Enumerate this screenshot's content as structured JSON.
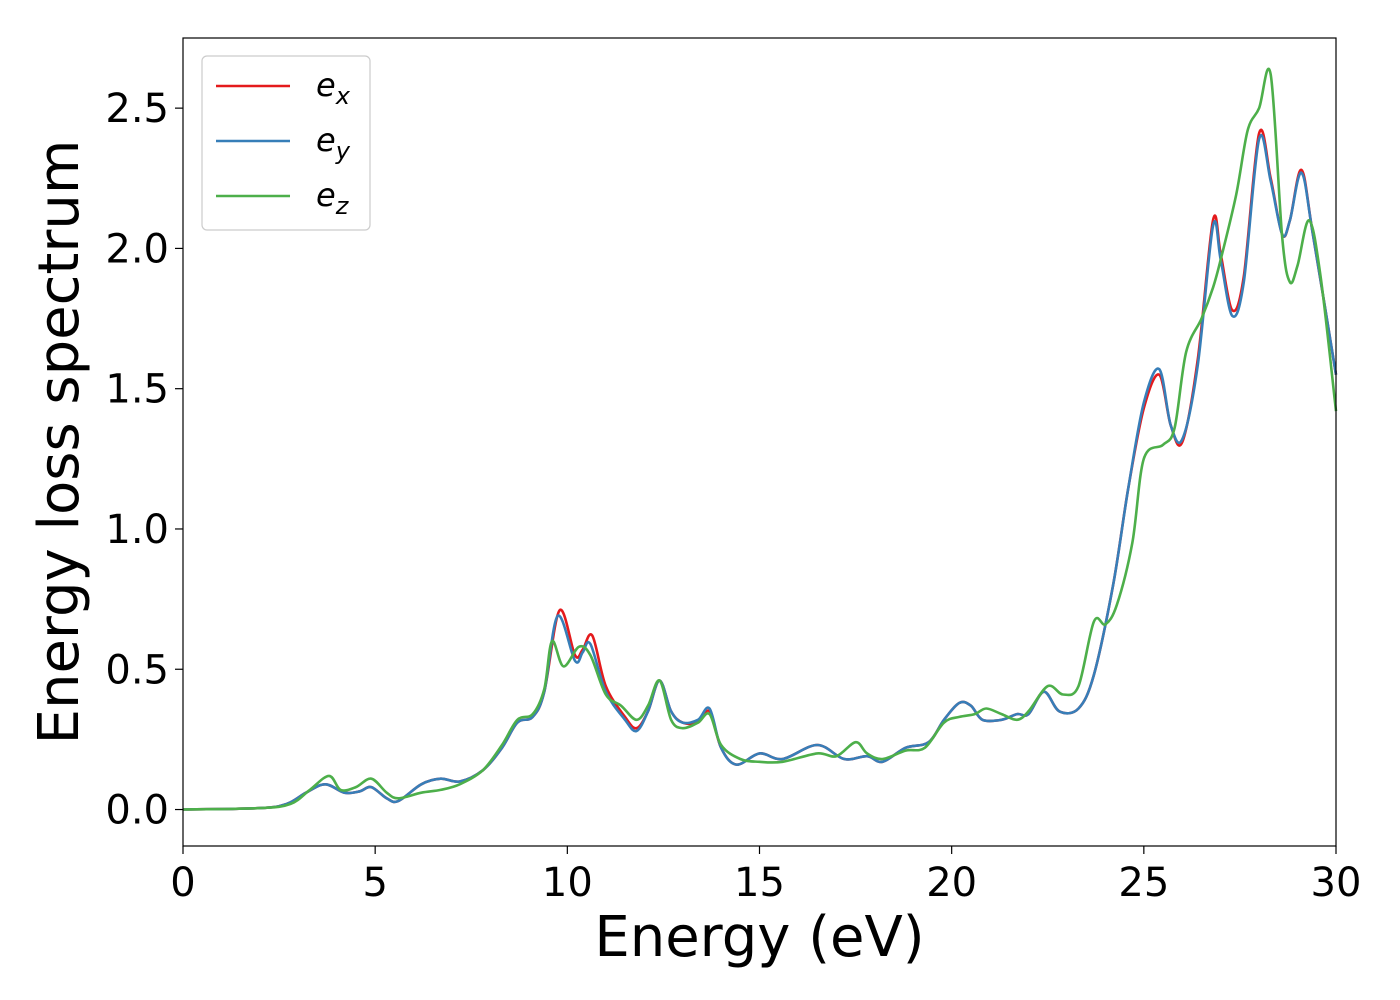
{
  "chart_data": {
    "type": "line",
    "xlabel": "Energy (eV)",
    "ylabel": "Energy loss spectrum",
    "xlim": [
      0,
      30
    ],
    "ylim": [
      -0.13,
      2.75
    ],
    "xticks": [
      "0",
      "5",
      "10",
      "15",
      "20",
      "25",
      "30"
    ],
    "yticks": [
      "0.0",
      "0.5",
      "1.0",
      "1.5",
      "2.0",
      "2.5"
    ],
    "grid": false,
    "legend_position": "top-left",
    "series": [
      {
        "name": "e_x",
        "label_base": "e",
        "label_sub": "x",
        "color": "#e41a1c",
        "points": [
          [
            0,
            0
          ],
          [
            2,
            0.005
          ],
          [
            2.7,
            0.02
          ],
          [
            3.2,
            0.06
          ],
          [
            3.7,
            0.09
          ],
          [
            4.2,
            0.06
          ],
          [
            4.6,
            0.065
          ],
          [
            4.9,
            0.08
          ],
          [
            5.3,
            0.04
          ],
          [
            5.6,
            0.03
          ],
          [
            6.2,
            0.09
          ],
          [
            6.7,
            0.11
          ],
          [
            7.2,
            0.1
          ],
          [
            7.8,
            0.14
          ],
          [
            8.3,
            0.22
          ],
          [
            8.7,
            0.31
          ],
          [
            9.1,
            0.33
          ],
          [
            9.4,
            0.42
          ],
          [
            9.8,
            0.71
          ],
          [
            10.2,
            0.55
          ],
          [
            10.4,
            0.57
          ],
          [
            10.65,
            0.62
          ],
          [
            11.0,
            0.44
          ],
          [
            11.5,
            0.33
          ],
          [
            11.8,
            0.29
          ],
          [
            12.1,
            0.35
          ],
          [
            12.4,
            0.46
          ],
          [
            12.7,
            0.35
          ],
          [
            13.0,
            0.31
          ],
          [
            13.4,
            0.31
          ],
          [
            13.7,
            0.35
          ],
          [
            14.0,
            0.22
          ],
          [
            14.4,
            0.16
          ],
          [
            15.0,
            0.2
          ],
          [
            15.6,
            0.18
          ],
          [
            16.5,
            0.23
          ],
          [
            17.2,
            0.18
          ],
          [
            17.8,
            0.19
          ],
          [
            18.2,
            0.17
          ],
          [
            18.8,
            0.22
          ],
          [
            19.4,
            0.24
          ],
          [
            19.8,
            0.32
          ],
          [
            20.2,
            0.38
          ],
          [
            20.5,
            0.37
          ],
          [
            20.8,
            0.32
          ],
          [
            21.3,
            0.32
          ],
          [
            21.7,
            0.34
          ],
          [
            22.0,
            0.34
          ],
          [
            22.4,
            0.42
          ],
          [
            22.8,
            0.35
          ],
          [
            23.3,
            0.36
          ],
          [
            23.7,
            0.48
          ],
          [
            24.2,
            0.8
          ],
          [
            24.6,
            1.15
          ],
          [
            25.0,
            1.43
          ],
          [
            25.4,
            1.55
          ],
          [
            25.7,
            1.37
          ],
          [
            26.0,
            1.31
          ],
          [
            26.4,
            1.6
          ],
          [
            26.8,
            2.1
          ],
          [
            27.0,
            1.98
          ],
          [
            27.3,
            1.78
          ],
          [
            27.6,
            1.9
          ],
          [
            28.0,
            2.41
          ],
          [
            28.3,
            2.25
          ],
          [
            28.6,
            2.05
          ],
          [
            28.8,
            2.1
          ],
          [
            29.1,
            2.28
          ],
          [
            29.4,
            2.05
          ],
          [
            30.0,
            1.55
          ]
        ]
      },
      {
        "name": "e_y",
        "label_base": "e",
        "label_sub": "y",
        "color": "#377eb8",
        "points": [
          [
            0,
            0
          ],
          [
            2,
            0.005
          ],
          [
            2.7,
            0.02
          ],
          [
            3.2,
            0.06
          ],
          [
            3.7,
            0.09
          ],
          [
            4.2,
            0.06
          ],
          [
            4.6,
            0.065
          ],
          [
            4.9,
            0.08
          ],
          [
            5.3,
            0.04
          ],
          [
            5.6,
            0.03
          ],
          [
            6.2,
            0.09
          ],
          [
            6.7,
            0.11
          ],
          [
            7.2,
            0.1
          ],
          [
            7.8,
            0.14
          ],
          [
            8.3,
            0.22
          ],
          [
            8.7,
            0.31
          ],
          [
            9.1,
            0.33
          ],
          [
            9.4,
            0.42
          ],
          [
            9.75,
            0.69
          ],
          [
            10.2,
            0.53
          ],
          [
            10.4,
            0.56
          ],
          [
            10.6,
            0.59
          ],
          [
            11.0,
            0.42
          ],
          [
            11.5,
            0.32
          ],
          [
            11.8,
            0.28
          ],
          [
            12.1,
            0.35
          ],
          [
            12.4,
            0.46
          ],
          [
            12.7,
            0.35
          ],
          [
            13.0,
            0.31
          ],
          [
            13.4,
            0.32
          ],
          [
            13.7,
            0.36
          ],
          [
            14.0,
            0.22
          ],
          [
            14.4,
            0.16
          ],
          [
            15.0,
            0.2
          ],
          [
            15.6,
            0.18
          ],
          [
            16.5,
            0.23
          ],
          [
            17.2,
            0.18
          ],
          [
            17.8,
            0.19
          ],
          [
            18.2,
            0.17
          ],
          [
            18.8,
            0.22
          ],
          [
            19.4,
            0.24
          ],
          [
            19.8,
            0.32
          ],
          [
            20.2,
            0.38
          ],
          [
            20.5,
            0.37
          ],
          [
            20.8,
            0.32
          ],
          [
            21.3,
            0.32
          ],
          [
            21.7,
            0.34
          ],
          [
            22.0,
            0.34
          ],
          [
            22.4,
            0.42
          ],
          [
            22.8,
            0.35
          ],
          [
            23.3,
            0.36
          ],
          [
            23.7,
            0.48
          ],
          [
            24.2,
            0.8
          ],
          [
            24.6,
            1.15
          ],
          [
            25.0,
            1.45
          ],
          [
            25.4,
            1.57
          ],
          [
            25.7,
            1.37
          ],
          [
            26.0,
            1.32
          ],
          [
            26.4,
            1.58
          ],
          [
            26.8,
            2.08
          ],
          [
            27.0,
            1.96
          ],
          [
            27.3,
            1.76
          ],
          [
            27.6,
            1.88
          ],
          [
            28.0,
            2.39
          ],
          [
            28.3,
            2.24
          ],
          [
            28.6,
            2.05
          ],
          [
            28.8,
            2.1
          ],
          [
            29.1,
            2.27
          ],
          [
            29.4,
            2.05
          ],
          [
            30.0,
            1.55
          ]
        ]
      },
      {
        "name": "e_z",
        "label_base": "e",
        "label_sub": "z",
        "color": "#4daf4a",
        "points": [
          [
            0,
            0
          ],
          [
            2,
            0.005
          ],
          [
            2.8,
            0.02
          ],
          [
            3.3,
            0.07
          ],
          [
            3.8,
            0.12
          ],
          [
            4.1,
            0.07
          ],
          [
            4.5,
            0.08
          ],
          [
            4.9,
            0.11
          ],
          [
            5.3,
            0.06
          ],
          [
            5.6,
            0.04
          ],
          [
            6.2,
            0.06
          ],
          [
            6.7,
            0.07
          ],
          [
            7.2,
            0.09
          ],
          [
            7.8,
            0.14
          ],
          [
            8.3,
            0.23
          ],
          [
            8.7,
            0.32
          ],
          [
            9.1,
            0.34
          ],
          [
            9.4,
            0.43
          ],
          [
            9.6,
            0.6
          ],
          [
            9.9,
            0.51
          ],
          [
            10.3,
            0.58
          ],
          [
            10.6,
            0.55
          ],
          [
            11.0,
            0.41
          ],
          [
            11.4,
            0.37
          ],
          [
            11.8,
            0.32
          ],
          [
            12.1,
            0.37
          ],
          [
            12.4,
            0.46
          ],
          [
            12.7,
            0.32
          ],
          [
            13.0,
            0.29
          ],
          [
            13.4,
            0.31
          ],
          [
            13.7,
            0.34
          ],
          [
            14.0,
            0.23
          ],
          [
            14.5,
            0.18
          ],
          [
            15.0,
            0.17
          ],
          [
            15.6,
            0.17
          ],
          [
            16.5,
            0.2
          ],
          [
            17.0,
            0.19
          ],
          [
            17.5,
            0.24
          ],
          [
            17.8,
            0.2
          ],
          [
            18.2,
            0.18
          ],
          [
            18.8,
            0.21
          ],
          [
            19.3,
            0.22
          ],
          [
            19.8,
            0.31
          ],
          [
            20.2,
            0.33
          ],
          [
            20.6,
            0.34
          ],
          [
            20.9,
            0.36
          ],
          [
            21.3,
            0.34
          ],
          [
            21.7,
            0.32
          ],
          [
            22.0,
            0.35
          ],
          [
            22.5,
            0.44
          ],
          [
            22.9,
            0.41
          ],
          [
            23.3,
            0.44
          ],
          [
            23.7,
            0.67
          ],
          [
            24.0,
            0.66
          ],
          [
            24.3,
            0.73
          ],
          [
            24.7,
            0.95
          ],
          [
            25.0,
            1.25
          ],
          [
            25.5,
            1.3
          ],
          [
            25.8,
            1.36
          ],
          [
            26.1,
            1.63
          ],
          [
            26.5,
            1.75
          ],
          [
            26.8,
            1.86
          ],
          [
            27.0,
            1.96
          ],
          [
            27.4,
            2.19
          ],
          [
            27.7,
            2.42
          ],
          [
            28.0,
            2.5
          ],
          [
            28.3,
            2.62
          ],
          [
            28.6,
            2.04
          ],
          [
            28.8,
            1.88
          ],
          [
            29.0,
            1.94
          ],
          [
            29.3,
            2.1
          ],
          [
            29.6,
            1.9
          ],
          [
            30.0,
            1.42
          ]
        ]
      }
    ]
  }
}
